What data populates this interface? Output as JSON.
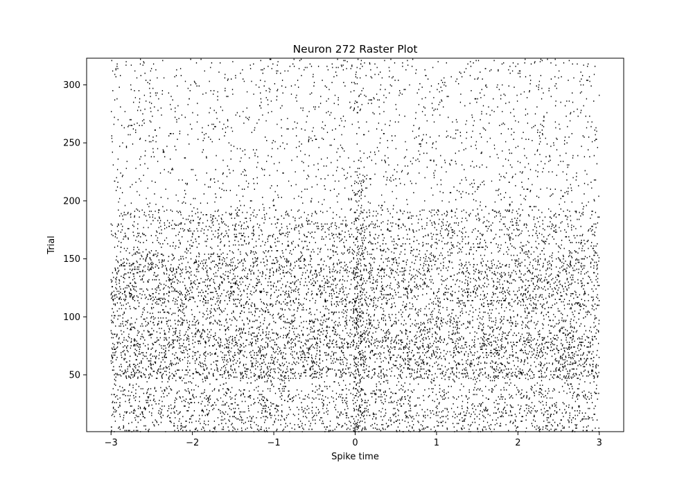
{
  "chart_data": {
    "type": "scatter",
    "subtype": "raster",
    "title": "Neuron 272 Raster Plot",
    "xlabel": "Spike time",
    "ylabel": "Trial",
    "xlim": [
      -3.3,
      3.3
    ],
    "ylim": [
      1,
      323
    ],
    "xticks": [
      -3,
      -2,
      -1,
      0,
      1,
      2,
      3
    ],
    "xtick_labels": [
      "−3",
      "−2",
      "−1",
      "0",
      "1",
      "2",
      "3"
    ],
    "yticks": [
      50,
      100,
      150,
      200,
      250,
      300
    ],
    "ytick_labels": [
      "50",
      "100",
      "150",
      "200",
      "250",
      "300"
    ],
    "grid": false,
    "legend": "none",
    "marker_color": "#000000",
    "n_trials": 322,
    "time_range": [
      -3,
      3
    ],
    "stimulus_time": 0.05,
    "series": [
      {
        "values": [
          {
            "trials": [
              1,
              38
            ],
            "rate_per_s": 7
          },
          {
            "trials": [
              39,
              46
            ],
            "rate_per_s": 3
          },
          {
            "trials": [
              47,
              80
            ],
            "rate_per_s": 11
          },
          {
            "trials": [
              81,
              150
            ],
            "rate_per_s": 9
          },
          {
            "trials": [
              151,
              192
            ],
            "rate_per_s": 6
          },
          {
            "trials": [
              193,
              322
            ],
            "rate_per_s": 2
          }
        ]
      }
    ]
  }
}
